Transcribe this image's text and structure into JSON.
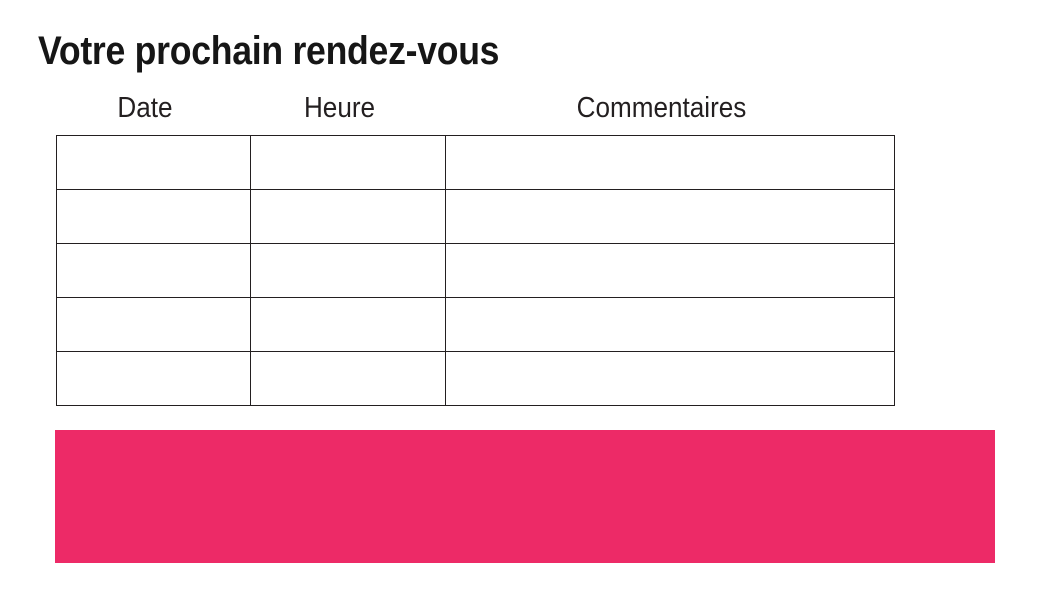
{
  "page": {
    "title": "Votre prochain rendez-vous",
    "background": "#FFFFFF"
  },
  "theme": {
    "accent": "#ED2A67",
    "table_border": "#231F20",
    "title_color": "#161616",
    "header_text_color": "#231F20"
  },
  "table": {
    "columns": [
      {
        "label": "Date"
      },
      {
        "label": "Heure"
      },
      {
        "label": "Commentaires"
      }
    ],
    "rows": [
      [
        "",
        "",
        ""
      ],
      [
        "",
        "",
        ""
      ],
      [
        "",
        "",
        ""
      ],
      [
        "",
        "",
        ""
      ],
      [
        "",
        "",
        ""
      ]
    ]
  }
}
